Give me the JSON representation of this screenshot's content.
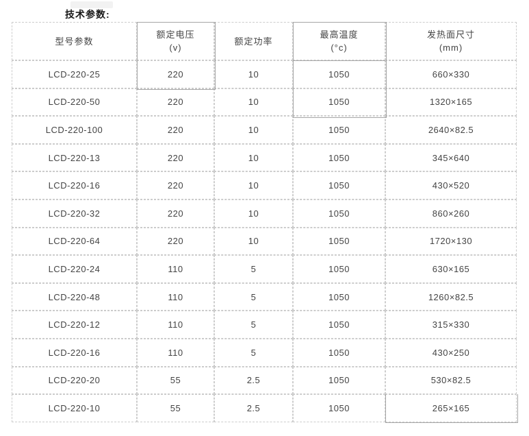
{
  "page": {
    "title": "技术参数:"
  },
  "table": {
    "columns": [
      {
        "label": "型号参数",
        "sub": ""
      },
      {
        "label": "额定电压",
        "sub": "(v)"
      },
      {
        "label": "额定功率",
        "sub": ""
      },
      {
        "label": "最高温度",
        "sub": "(°c)"
      },
      {
        "label": "发热面尺寸",
        "sub": "(mm)"
      }
    ],
    "rows": [
      [
        "LCD-220-25",
        "220",
        "10",
        "1050",
        "660×330"
      ],
      [
        "LCD-220-50",
        "220",
        "10",
        "1050",
        "1320×165"
      ],
      [
        "LCD-220-100",
        "220",
        "10",
        "1050",
        "2640×82.5"
      ],
      [
        "LCD-220-13",
        "220",
        "10",
        "1050",
        "345×640"
      ],
      [
        "LCD-220-16",
        "220",
        "10",
        "1050",
        "430×520"
      ],
      [
        "LCD-220-32",
        "220",
        "10",
        "1050",
        "860×260"
      ],
      [
        "LCD-220-64",
        "220",
        "10",
        "1050",
        "1720×130"
      ],
      [
        "LCD-220-24",
        "110",
        "5",
        "1050",
        "630×165"
      ],
      [
        "LCD-220-48",
        "110",
        "5",
        "1050",
        "1260×82.5"
      ],
      [
        "LCD-220-12",
        "110",
        "5",
        "1050",
        "315×330"
      ],
      [
        "LCD-220-16",
        "110",
        "5",
        "1050",
        "430×250"
      ],
      [
        "LCD-220-20",
        "55",
        "2.5",
        "1050",
        "530×82.5"
      ],
      [
        "LCD-220-10",
        "55",
        "2.5",
        "1050",
        "265×165"
      ]
    ]
  },
  "colors": {
    "dashed_border": "#cccccc",
    "solid_selection_border": "#a6a6a6",
    "cell_text": "#444444",
    "title_text": "#1a1a1a",
    "background": "#ffffff"
  }
}
